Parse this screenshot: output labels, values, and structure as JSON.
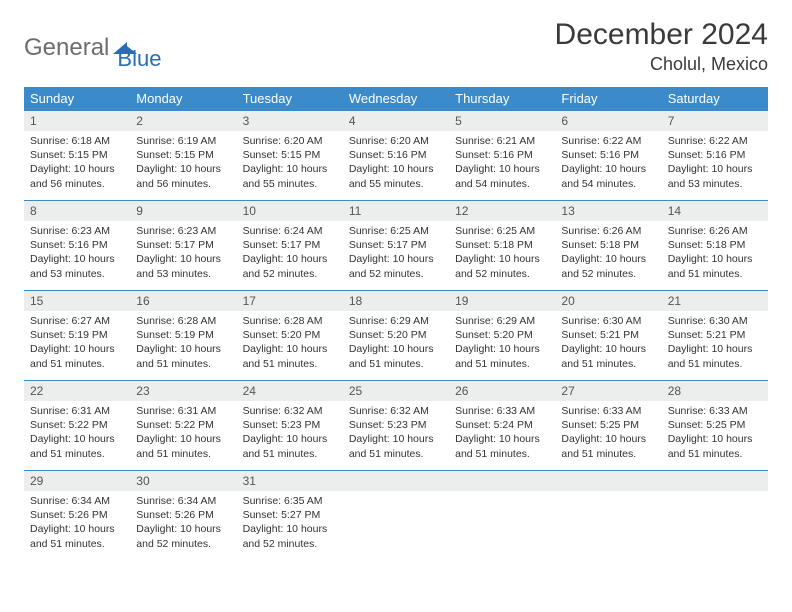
{
  "brand": {
    "part1": "General",
    "part2": "Blue"
  },
  "title": "December 2024",
  "location": "Cholul, Mexico",
  "colors": {
    "header_bg": "#3b8bca",
    "header_text": "#ffffff",
    "daynum_bg": "#eceded",
    "border": "#3b8bca",
    "logo_gray": "#6d6d6d",
    "logo_blue": "#2a6db3"
  },
  "dow": [
    "Sunday",
    "Monday",
    "Tuesday",
    "Wednesday",
    "Thursday",
    "Friday",
    "Saturday"
  ],
  "weeks": [
    [
      {
        "n": "1",
        "sr": "6:18 AM",
        "ss": "5:15 PM",
        "dl": "10 hours and 56 minutes."
      },
      {
        "n": "2",
        "sr": "6:19 AM",
        "ss": "5:15 PM",
        "dl": "10 hours and 56 minutes."
      },
      {
        "n": "3",
        "sr": "6:20 AM",
        "ss": "5:15 PM",
        "dl": "10 hours and 55 minutes."
      },
      {
        "n": "4",
        "sr": "6:20 AM",
        "ss": "5:16 PM",
        "dl": "10 hours and 55 minutes."
      },
      {
        "n": "5",
        "sr": "6:21 AM",
        "ss": "5:16 PM",
        "dl": "10 hours and 54 minutes."
      },
      {
        "n": "6",
        "sr": "6:22 AM",
        "ss": "5:16 PM",
        "dl": "10 hours and 54 minutes."
      },
      {
        "n": "7",
        "sr": "6:22 AM",
        "ss": "5:16 PM",
        "dl": "10 hours and 53 minutes."
      }
    ],
    [
      {
        "n": "8",
        "sr": "6:23 AM",
        "ss": "5:16 PM",
        "dl": "10 hours and 53 minutes."
      },
      {
        "n": "9",
        "sr": "6:23 AM",
        "ss": "5:17 PM",
        "dl": "10 hours and 53 minutes."
      },
      {
        "n": "10",
        "sr": "6:24 AM",
        "ss": "5:17 PM",
        "dl": "10 hours and 52 minutes."
      },
      {
        "n": "11",
        "sr": "6:25 AM",
        "ss": "5:17 PM",
        "dl": "10 hours and 52 minutes."
      },
      {
        "n": "12",
        "sr": "6:25 AM",
        "ss": "5:18 PM",
        "dl": "10 hours and 52 minutes."
      },
      {
        "n": "13",
        "sr": "6:26 AM",
        "ss": "5:18 PM",
        "dl": "10 hours and 52 minutes."
      },
      {
        "n": "14",
        "sr": "6:26 AM",
        "ss": "5:18 PM",
        "dl": "10 hours and 51 minutes."
      }
    ],
    [
      {
        "n": "15",
        "sr": "6:27 AM",
        "ss": "5:19 PM",
        "dl": "10 hours and 51 minutes."
      },
      {
        "n": "16",
        "sr": "6:28 AM",
        "ss": "5:19 PM",
        "dl": "10 hours and 51 minutes."
      },
      {
        "n": "17",
        "sr": "6:28 AM",
        "ss": "5:20 PM",
        "dl": "10 hours and 51 minutes."
      },
      {
        "n": "18",
        "sr": "6:29 AM",
        "ss": "5:20 PM",
        "dl": "10 hours and 51 minutes."
      },
      {
        "n": "19",
        "sr": "6:29 AM",
        "ss": "5:20 PM",
        "dl": "10 hours and 51 minutes."
      },
      {
        "n": "20",
        "sr": "6:30 AM",
        "ss": "5:21 PM",
        "dl": "10 hours and 51 minutes."
      },
      {
        "n": "21",
        "sr": "6:30 AM",
        "ss": "5:21 PM",
        "dl": "10 hours and 51 minutes."
      }
    ],
    [
      {
        "n": "22",
        "sr": "6:31 AM",
        "ss": "5:22 PM",
        "dl": "10 hours and 51 minutes."
      },
      {
        "n": "23",
        "sr": "6:31 AM",
        "ss": "5:22 PM",
        "dl": "10 hours and 51 minutes."
      },
      {
        "n": "24",
        "sr": "6:32 AM",
        "ss": "5:23 PM",
        "dl": "10 hours and 51 minutes."
      },
      {
        "n": "25",
        "sr": "6:32 AM",
        "ss": "5:23 PM",
        "dl": "10 hours and 51 minutes."
      },
      {
        "n": "26",
        "sr": "6:33 AM",
        "ss": "5:24 PM",
        "dl": "10 hours and 51 minutes."
      },
      {
        "n": "27",
        "sr": "6:33 AM",
        "ss": "5:25 PM",
        "dl": "10 hours and 51 minutes."
      },
      {
        "n": "28",
        "sr": "6:33 AM",
        "ss": "5:25 PM",
        "dl": "10 hours and 51 minutes."
      }
    ],
    [
      {
        "n": "29",
        "sr": "6:34 AM",
        "ss": "5:26 PM",
        "dl": "10 hours and 51 minutes."
      },
      {
        "n": "30",
        "sr": "6:34 AM",
        "ss": "5:26 PM",
        "dl": "10 hours and 52 minutes."
      },
      {
        "n": "31",
        "sr": "6:35 AM",
        "ss": "5:27 PM",
        "dl": "10 hours and 52 minutes."
      },
      null,
      null,
      null,
      null
    ]
  ],
  "labels": {
    "sunrise": "Sunrise:",
    "sunset": "Sunset:",
    "daylight": "Daylight:"
  }
}
